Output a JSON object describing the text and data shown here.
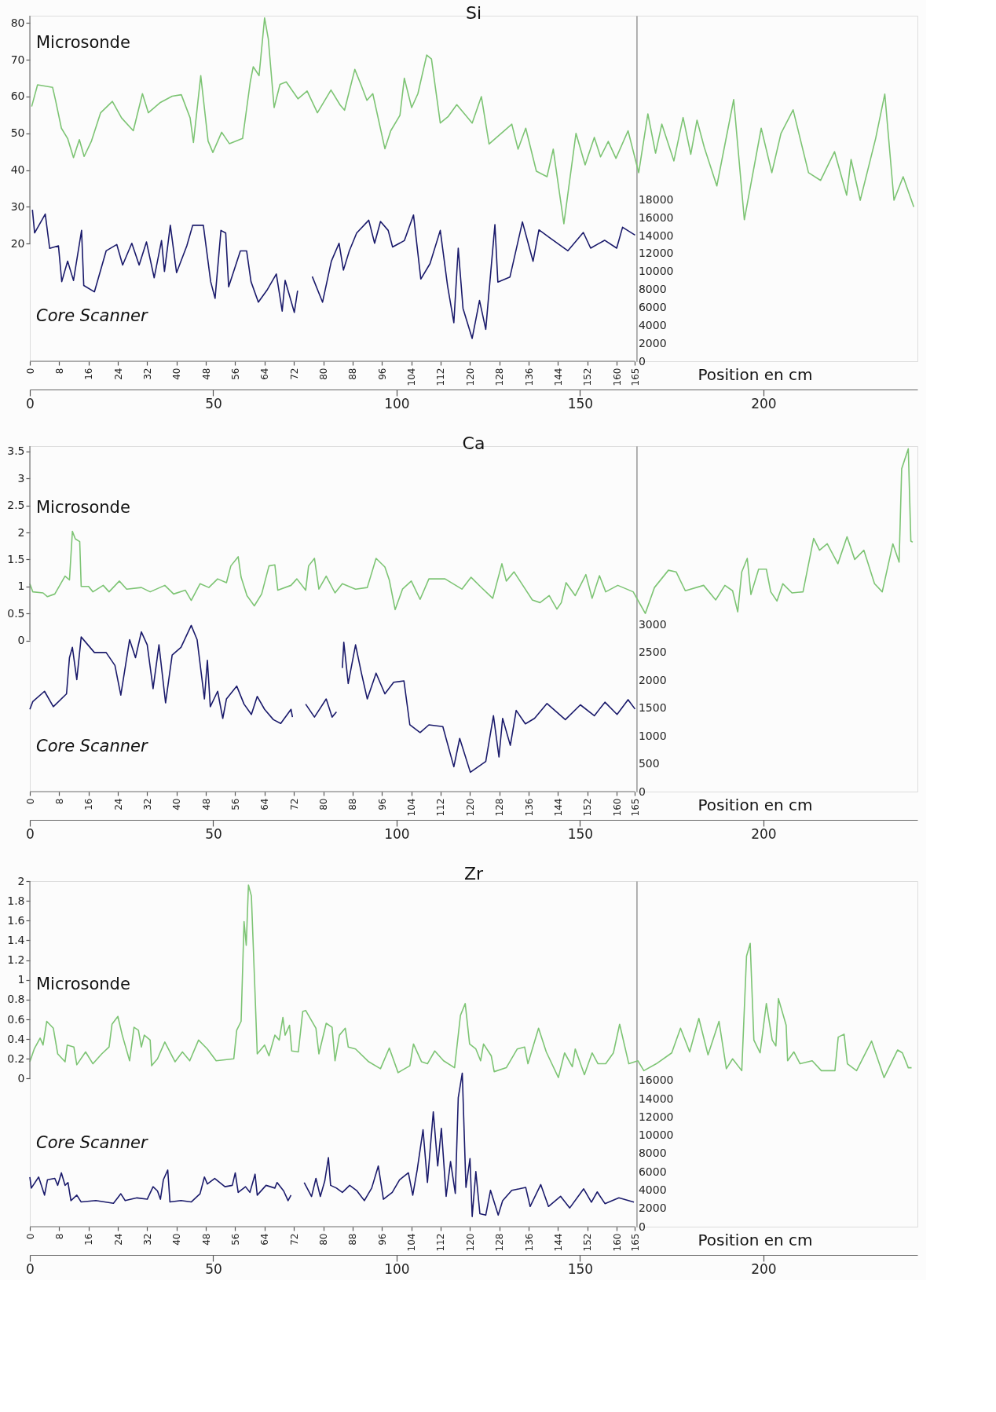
{
  "chart_data": [
    {
      "type": "line",
      "title": "Si",
      "x2label": "Position en cm",
      "xlim": [
        0,
        242
      ],
      "xticks": [
        0,
        50,
        100,
        150,
        200
      ],
      "x2lim": [
        0,
        242
      ],
      "x2ticks": [
        0,
        8,
        16,
        24,
        32,
        40,
        48,
        56,
        64,
        72,
        80,
        88,
        96,
        104,
        112,
        120,
        128,
        136,
        144,
        152,
        160,
        165
      ],
      "ylim": [
        -12,
        82
      ],
      "yticks": [
        20,
        30,
        40,
        50,
        60,
        70,
        80
      ],
      "y2lim": [
        0,
        38500
      ],
      "y2ticks": [
        0,
        2000,
        4000,
        6000,
        8000,
        10000,
        12000,
        14000,
        16000,
        18000
      ],
      "series": [
        {
          "name": "Microsonde",
          "color": "#7dc474",
          "x": [
            0.5,
            2.1,
            6.2,
            7,
            8.6,
            10.3,
            11.9,
            13.5,
            14.8,
            16.8,
            19.3,
            22.5,
            25,
            28.2,
            30.7,
            32.3,
            35.6,
            38.8,
            41.3,
            43.7,
            44.6,
            46.6,
            48.6,
            49.9,
            52.3,
            54.4,
            58,
            60.1,
            60.9,
            62.5,
            64,
            65,
            66.6,
            68.2,
            69.9,
            73.1,
            75.6,
            78.4,
            82.1,
            84.6,
            85.8,
            88.6,
            90.3,
            91.9,
            93.5,
            96.8,
            98.4,
            100.9,
            102.1,
            104.1,
            105.8,
            108.2,
            109.5,
            111.9,
            114,
            116.4,
            120.6,
            123.1,
            125.2,
            131.4,
            133.1,
            135.2,
            138.1,
            141,
            142.7,
            145.6,
            148.9,
            151.4,
            153.9,
            155.6,
            157.7,
            159.8,
            163.1,
            166,
            168.5,
            170.6,
            172.3,
            175.6,
            178.1,
            180.2,
            181.9,
            183.9,
            187.3,
            191.9,
            194.8,
            199.4,
            202.3,
            204.8,
            208.1,
            212.3,
            215.6,
            219.4,
            222.7,
            223.9,
            226.4,
            230.6,
            233.1,
            235.6,
            238.1,
            241
          ],
          "values": [
            57.3,
            63.2,
            62.5,
            59,
            51.4,
            48.6,
            43.4,
            48.3,
            43.7,
            47.9,
            55.6,
            58.7,
            54.2,
            50.7,
            60.8,
            55.6,
            58.4,
            60.1,
            60.5,
            54.2,
            47.5,
            65.7,
            47.9,
            44.8,
            50.3,
            47.2,
            48.6,
            64,
            68.1,
            65.7,
            81.4,
            75.8,
            57,
            63.3,
            64,
            59.4,
            61.5,
            55.6,
            61.8,
            57.7,
            56.3,
            67.4,
            63.2,
            59,
            60.8,
            45.8,
            50.7,
            54.9,
            65,
            57,
            60.8,
            71.3,
            70.2,
            52.8,
            54.5,
            57.8,
            52.8,
            60,
            47.1,
            52.5,
            45.7,
            51.4,
            39.7,
            38.2,
            45.7,
            25.4,
            50,
            41.4,
            48.9,
            43.6,
            47.8,
            43.2,
            50.7,
            39.3,
            55.3,
            44.6,
            52.5,
            42.5,
            54.3,
            44.3,
            53.6,
            46.1,
            35.7,
            59.2,
            26.5,
            51.4,
            39.3,
            50,
            56.4,
            39.3,
            37.2,
            45,
            33.2,
            42.9,
            31.8,
            48.6,
            60.7,
            31.8,
            38.2,
            30
          ]
        },
        {
          "name": "Core Scanner",
          "color": "#1a1a6b",
          "axis": "y2",
          "x": [
            0.7,
            1.3,
            4.2,
            5.4,
            7.8,
            8.7,
            10.3,
            11.9,
            14.1,
            14.7,
            17.6,
            20.8,
            23.7,
            25.3,
            27.8,
            29.8,
            31.8,
            33.9,
            35.9,
            36.7,
            38.3,
            40,
            42.8,
            44.4,
            47.3,
            49.3,
            50.5,
            52.1,
            53.4,
            54.2,
            57.4,
            59.1,
            60.3,
            62.3,
            64.8,
            67.2,
            68.8,
            69.6,
            72.1,
            73,
            75,
            77,
            79.8,
            82.2,
            84.3,
            85.5,
            87.1,
            89.1,
            92.4,
            94,
            95.6,
            97.7,
            98.9,
            102.1,
            104.6,
            106.6,
            109.1,
            111.9,
            113.9,
            115.6,
            116.8,
            118.1,
            120.6,
            122.6,
            124.3,
            126.8,
            127.6,
            130.9,
            134.3,
            137.2,
            138.8,
            141.7,
            146.7,
            150.9,
            152.9,
            156.7,
            160,
            161.6,
            165
          ],
          "values": [
            16870,
            14300,
            16400,
            12580,
            12860,
            8870,
            11160,
            9000,
            14580,
            8440,
            7730,
            12300,
            13010,
            10720,
            13150,
            10720,
            13290,
            9300,
            13440,
            10010,
            15150,
            9870,
            12860,
            15150,
            15150,
            8870,
            7010,
            14580,
            14290,
            8300,
            12300,
            12300,
            8870,
            6580,
            8010,
            9720,
            5580,
            9010,
            5440,
            7870,
            null,
            9440,
            6580,
            11150,
            13150,
            10160,
            12300,
            14290,
            15720,
            13150,
            15580,
            14580,
            12730,
            13440,
            16300,
            9160,
            10870,
            14580,
            8370,
            4290,
            12600,
            5890,
            2540,
            6770,
            3560,
            15230,
            8810,
            9390,
            15520,
            11140,
            14640,
            13770,
            12310,
            14350,
            12600,
            13480,
            12600,
            14930,
            14060
          ]
        }
      ]
    },
    {
      "type": "line",
      "title": "Ca",
      "x2label": "Position en cm",
      "xlim": [
        0,
        242
      ],
      "xticks": [
        0,
        50,
        100,
        150,
        200
      ],
      "x2lim": [
        0,
        242
      ],
      "x2ticks": [
        0,
        8,
        16,
        24,
        32,
        40,
        48,
        56,
        64,
        72,
        80,
        88,
        96,
        104,
        112,
        120,
        128,
        136,
        144,
        152,
        160,
        165
      ],
      "ylim": [
        -2.8,
        3.6
      ],
      "yticks": [
        0,
        0.5,
        1,
        1.5,
        2,
        2.5,
        3,
        3.5
      ],
      "y2lim": [
        0,
        6200
      ],
      "y2ticks": [
        0,
        500,
        1000,
        1500,
        2000,
        2500,
        3000
      ],
      "series": [
        {
          "name": "Microsonde",
          "color": "#7dc474",
          "x": [
            0,
            0.8,
            3.6,
            4.8,
            6.8,
            8.4,
            9.6,
            10.8,
            11.6,
            12.4,
            13.6,
            14,
            16,
            17.2,
            20,
            21.6,
            24.4,
            26.4,
            30.4,
            32.8,
            36.8,
            39.2,
            42.4,
            44,
            46.4,
            48.8,
            51.2,
            53.6,
            54.8,
            56.8,
            57.6,
            59.2,
            61.2,
            63.2,
            65.2,
            66.8,
            67.6,
            71.2,
            72.8,
            75.2,
            76,
            77.6,
            78.8,
            80.8,
            83.2,
            85.2,
            88.8,
            92,
            94.4,
            96.8,
            98,
            99.6,
            101.6,
            104,
            106.4,
            108.8,
            113.2,
            117.8,
            120.3,
            122.8,
            126.2,
            128.7,
            129.9,
            132,
            137,
            139.1,
            141.6,
            143.7,
            144.9,
            146.2,
            148.7,
            151.6,
            153.3,
            155.3,
            157,
            160.3,
            164.5,
            167.8,
            170.3,
            174.1,
            176.2,
            178.7,
            183.7,
            187,
            189.5,
            191.6,
            193,
            194.1,
            195.6,
            196.6,
            198.7,
            200.8,
            202,
            203.7,
            205.3,
            207.8,
            210.8,
            213.7,
            215.3,
            217.4,
            220.3,
            222.8,
            224.9,
            227.4,
            230.3,
            232.4,
            235.3,
            237,
            237.7,
            239.5,
            240.2,
            240.7
          ],
          "values": [
            1.05,
            0.9,
            0.88,
            0.81,
            0.86,
            1.05,
            1.19,
            1.12,
            2.02,
            1.88,
            1.83,
            1.0,
            1.0,
            0.9,
            1.02,
            0.9,
            1.1,
            0.95,
            0.98,
            0.9,
            1.02,
            0.86,
            0.93,
            0.74,
            1.05,
            0.98,
            1.14,
            1.07,
            1.38,
            1.55,
            1.17,
            0.83,
            0.64,
            0.86,
            1.38,
            1.4,
            0.93,
            1.02,
            1.14,
            0.93,
            1.38,
            1.52,
            0.95,
            1.19,
            0.88,
            1.05,
            0.95,
            0.98,
            1.52,
            1.36,
            1.12,
            0.57,
            0.95,
            1.1,
            0.76,
            1.14,
            1.14,
            0.95,
            1.17,
            1.0,
            0.78,
            1.42,
            1.1,
            1.27,
            0.75,
            0.7,
            0.83,
            0.58,
            0.7,
            1.07,
            0.83,
            1.22,
            0.78,
            1.2,
            0.9,
            1.02,
            0.9,
            0.5,
            0.98,
            1.3,
            1.27,
            0.92,
            1.02,
            0.75,
            1.02,
            0.92,
            0.53,
            1.27,
            1.52,
            0.85,
            1.32,
            1.32,
            0.9,
            0.73,
            1.05,
            0.88,
            0.9,
            1.89,
            1.67,
            1.79,
            1.42,
            1.92,
            1.5,
            1.67,
            1.05,
            0.9,
            1.79,
            1.45,
            3.18,
            3.55,
            1.84,
            1.82
          ]
        },
        {
          "name": "Core Scanner",
          "color": "#1a1a6b",
          "axis": "y2",
          "x": [
            0,
            0.8,
            4,
            6.4,
            10,
            10.8,
            11.6,
            12.8,
            14,
            17.6,
            20.8,
            23.2,
            24.8,
            27.2,
            28.8,
            30.4,
            32,
            33.6,
            35.2,
            37,
            38.8,
            41.2,
            44,
            45.6,
            47.6,
            48.4,
            49.2,
            51.2,
            52.6,
            53.6,
            56.4,
            58.4,
            60.4,
            62,
            64,
            66.4,
            68.4,
            71.2,
            71.6,
            73.4,
            75.2,
            77.6,
            80.8,
            82.4,
            83.6,
            84.4,
            85.2,
            85.6,
            86.8,
            88.8,
            90.4,
            92,
            94.4,
            96.8,
            99.2,
            102,
            103.6,
            106.4,
            108.8,
            112.6,
            115.6,
            117.2,
            120.1,
            124.3,
            126.4,
            127.9,
            128.9,
            131,
            132.6,
            135.1,
            137.6,
            141,
            146,
            150.1,
            153.9,
            156.8,
            160.1,
            163.1,
            165
          ],
          "values": [
            1476,
            1615,
            1800,
            1523,
            1755,
            2403,
            2588,
            2009,
            2774,
            2496,
            2496,
            2264,
            1731,
            2727,
            2403,
            2866,
            2634,
            1847,
            2634,
            1592,
            2449,
            2588,
            2982,
            2727,
            1662,
            2357,
            1523,
            1800,
            1314,
            1662,
            1893,
            1569,
            1384,
            1708,
            1476,
            1291,
            1222,
            1476,
            1337,
            null,
            1569,
            1337,
            1662,
            1337,
            1430,
            null,
            2217,
            2681,
            1940,
            2634,
            2125,
            1662,
            2125,
            1755,
            1963,
            1986,
            1198,
            1060,
            1198,
            1167,
            446,
            955,
            347,
            541,
            1361,
            620,
            1314,
            830,
            1457,
            1216,
            1314,
            1581,
            1291,
            1557,
            1361,
            1604,
            1384,
            1650,
            1481
          ]
        }
      ]
    },
    {
      "type": "line",
      "title": "Zr",
      "x2label": "Position en cm",
      "xlim": [
        0,
        242
      ],
      "xticks": [
        0,
        50,
        100,
        150,
        200
      ],
      "x2lim": [
        0,
        242
      ],
      "x2ticks": [
        0,
        8,
        16,
        24,
        32,
        40,
        48,
        56,
        64,
        72,
        80,
        88,
        96,
        104,
        112,
        120,
        128,
        136,
        144,
        152,
        160,
        165
      ],
      "ylim": [
        -1.5,
        2
      ],
      "yticks": [
        0,
        0.2,
        0.4,
        0.6,
        0.8,
        1,
        1.2,
        1.4,
        1.6,
        1.8,
        2
      ],
      "y2lim": [
        0,
        37800
      ],
      "y2ticks": [
        0,
        2000,
        4000,
        6000,
        8000,
        10000,
        12000,
        14000,
        16000
      ],
      "series": [
        {
          "name": "Microsonde",
          "color": "#7dc474",
          "x": [
            0,
            1.2,
            2.8,
            3.6,
            4.6,
            6.4,
            7.6,
            9.6,
            10.2,
            12,
            12.8,
            15.2,
            17.2,
            19.6,
            21.6,
            22.4,
            24,
            25.2,
            27.2,
            28.4,
            29.6,
            30.4,
            31.2,
            32.8,
            33.2,
            34.8,
            36.8,
            39.6,
            41.6,
            43.6,
            46,
            48.4,
            50.8,
            55.6,
            56.4,
            57.6,
            58.4,
            59,
            59.6,
            60.4,
            61.4,
            62,
            64,
            65.2,
            66.8,
            68,
            69,
            69.6,
            70.8,
            71.4,
            73.2,
            74.4,
            75.2,
            78,
            78.8,
            80.8,
            82.4,
            83.2,
            84.4,
            86,
            86.8,
            88.8,
            92.4,
            95.6,
            98,
            100.4,
            103.6,
            104.6,
            106.8,
            108.4,
            110.4,
            112.8,
            115.8,
            117.4,
            118.7,
            119.9,
            121.6,
            122.9,
            123.7,
            125.8,
            126.6,
            129.9,
            132.9,
            134.9,
            135.8,
            138.7,
            140.8,
            144.1,
            145.8,
            147.9,
            148.7,
            151.2,
            153.3,
            154.9,
            157,
            159.1,
            160.8,
            163.3,
            165.8,
            167.4,
            170.8,
            175,
            177.4,
            179.9,
            182.4,
            184.9,
            187.9,
            189.9,
            191.6,
            194.1,
            195.4,
            196.4,
            197.4,
            199.1,
            200.8,
            202.4,
            203.4,
            204.1,
            206.2,
            206.6,
            208.3,
            210,
            213.3,
            215.8,
            219.5,
            220.4,
            222,
            222.9,
            225.4,
            229.5,
            232.9,
            236.6,
            237.9,
            239.5,
            240.4
          ],
          "values": [
            0.17,
            0.3,
            0.41,
            0.34,
            0.58,
            0.51,
            0.25,
            0.17,
            0.34,
            0.32,
            0.14,
            0.27,
            0.15,
            0.25,
            0.32,
            0.55,
            0.63,
            0.44,
            0.18,
            0.52,
            0.49,
            0.32,
            0.44,
            0.39,
            0.13,
            0.2,
            0.37,
            0.17,
            0.27,
            0.18,
            0.39,
            0.3,
            0.18,
            0.2,
            0.49,
            0.58,
            1.59,
            1.35,
            1.96,
            1.85,
            0.86,
            0.25,
            0.34,
            0.23,
            0.44,
            0.39,
            0.62,
            0.44,
            0.54,
            0.28,
            0.27,
            0.68,
            0.69,
            0.51,
            0.25,
            0.56,
            0.52,
            0.18,
            0.44,
            0.51,
            0.32,
            0.3,
            0.17,
            0.1,
            0.31,
            0.06,
            0.13,
            0.35,
            0.17,
            0.15,
            0.28,
            0.18,
            0.11,
            0.64,
            0.76,
            0.35,
            0.3,
            0.18,
            0.35,
            0.23,
            0.07,
            0.11,
            0.3,
            0.32,
            0.15,
            0.51,
            0.27,
            0.01,
            0.26,
            0.12,
            0.3,
            0.04,
            0.26,
            0.15,
            0.15,
            0.26,
            0.55,
            0.15,
            0.18,
            0.08,
            0.15,
            0.26,
            0.51,
            0.27,
            0.61,
            0.24,
            0.58,
            0.1,
            0.2,
            0.08,
            1.24,
            1.37,
            0.39,
            0.26,
            0.76,
            0.39,
            0.33,
            0.81,
            0.54,
            0.18,
            0.27,
            0.15,
            0.18,
            0.08,
            0.08,
            0.42,
            0.45,
            0.15,
            0.08,
            0.38,
            0.01,
            0.29,
            0.26,
            0.11,
            0.11
          ]
        },
        {
          "name": "Core Scanner",
          "color": "#1a1a6b",
          "axis": "y2",
          "x": [
            0,
            0.4,
            2.4,
            4,
            4.8,
            6.8,
            7.6,
            8.6,
            9.6,
            10.4,
            11.2,
            12.8,
            14,
            18,
            22.8,
            24.8,
            26,
            29.2,
            32,
            33.6,
            34.8,
            35.6,
            36.4,
            37.6,
            38.2,
            41.2,
            44,
            46.4,
            47.6,
            48.4,
            50.4,
            53.2,
            55.2,
            56,
            56.8,
            58.8,
            60,
            61.4,
            62,
            64.4,
            66.8,
            67.4,
            69.2,
            70.4,
            71.2,
            73,
            74.8,
            76.8,
            78,
            79.2,
            80.4,
            81.4,
            82,
            83.6,
            85.2,
            87.2,
            89.2,
            91.2,
            93.2,
            95,
            96.4,
            98.8,
            100.8,
            103.2,
            104.4,
            105.6,
            107.2,
            108.4,
            110,
            111.2,
            112.2,
            113.5,
            114.7,
            116,
            116.8,
            117.9,
            118.9,
            120,
            120.6,
            121.6,
            122.7,
            124.3,
            125.6,
            127.7,
            128.9,
            131.4,
            133.5,
            135.2,
            136.4,
            139.3,
            141.4,
            144.7,
            147.2,
            151,
            153.1,
            154.7,
            156.8,
            160.6,
            164.7
          ],
          "values": [
            5430,
            4220,
            5430,
            3450,
            5130,
            5280,
            4520,
            5890,
            4520,
            4830,
            2850,
            3450,
            2700,
            2850,
            2550,
            3600,
            2850,
            3150,
            3000,
            4370,
            3910,
            3000,
            5130,
            6190,
            2700,
            2850,
            2700,
            3600,
            5430,
            4670,
            5280,
            4370,
            4520,
            5890,
            3750,
            4370,
            3750,
            5740,
            3450,
            4520,
            4220,
            4830,
            3910,
            2850,
            3450,
            null,
            4830,
            3300,
            5280,
            3300,
            4980,
            7560,
            4520,
            4220,
            3750,
            4520,
            3910,
            2850,
            4220,
            6640,
            3000,
            3750,
            5130,
            5890,
            3450,
            6190,
            10600,
            4830,
            12570,
            6640,
            10760,
            3320,
            7120,
            3640,
            14090,
            16800,
            4290,
            7440,
            1110,
            6030,
            1420,
            1260,
            3980,
            1260,
            2840,
            3980,
            4140,
            4290,
            2210,
            4600,
            2210,
            3320,
            2050,
            4140,
            2680,
            3800,
            2520,
            3160,
            2680
          ]
        }
      ]
    }
  ]
}
